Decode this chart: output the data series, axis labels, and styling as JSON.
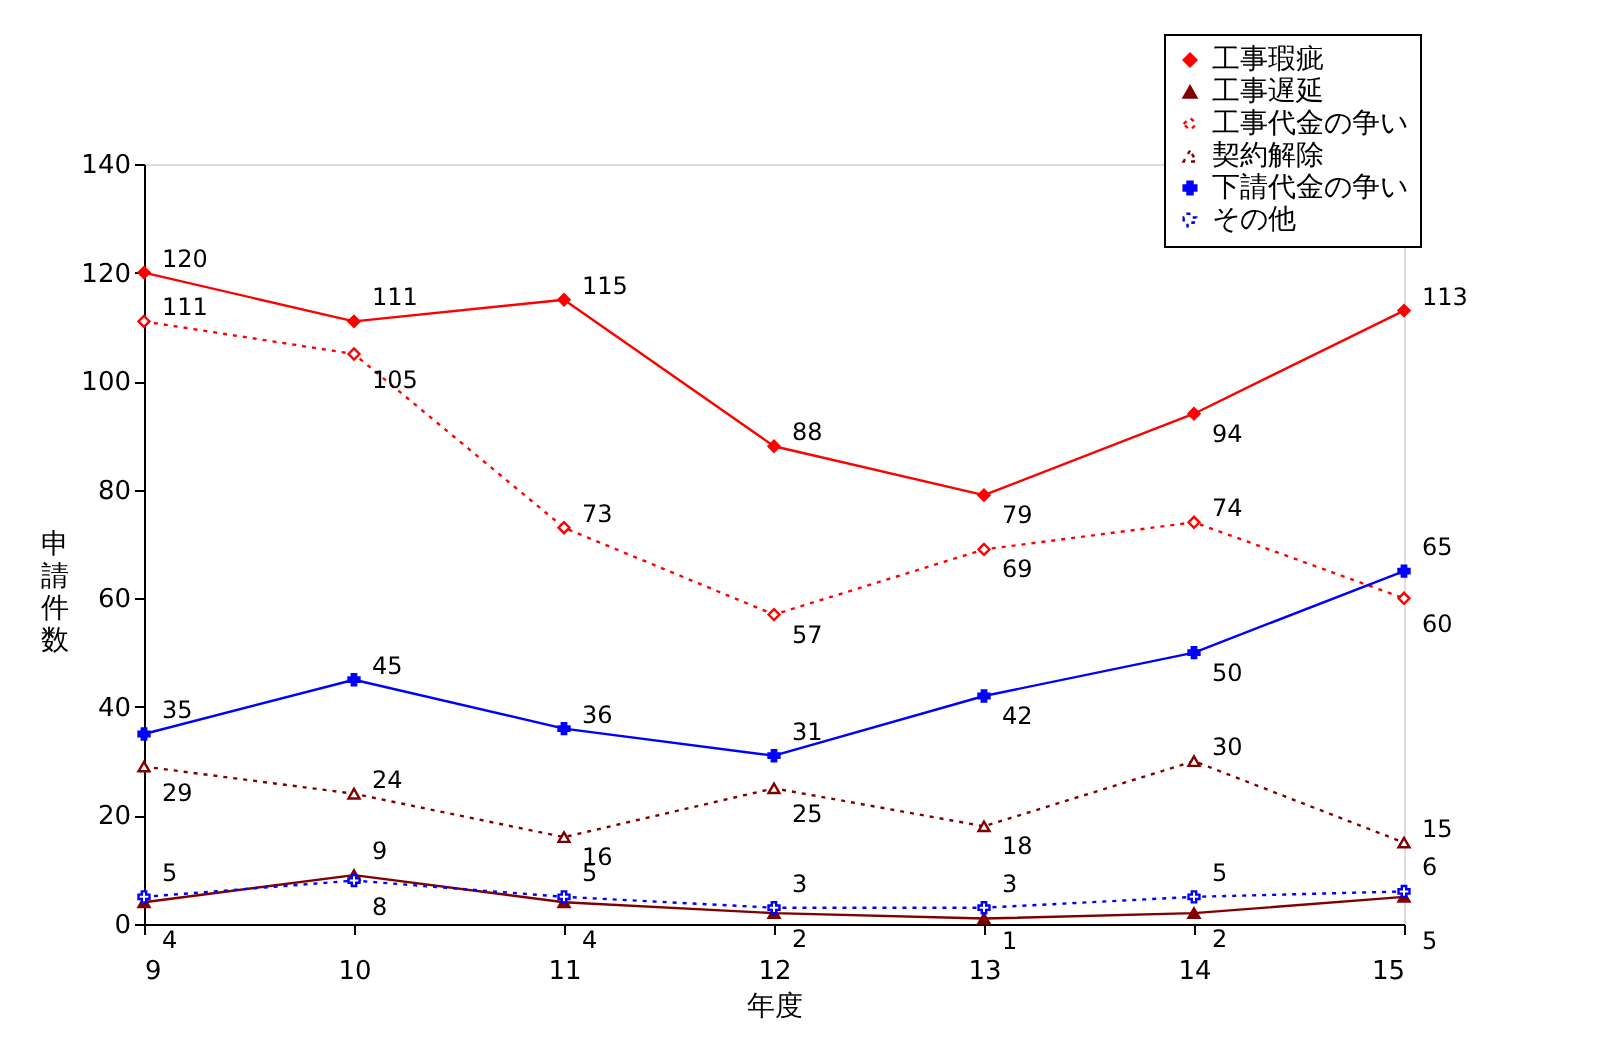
{
  "chart_data": {
    "type": "line",
    "xlabel": "年度",
    "ylabel": "申請件数",
    "x": [
      9,
      10,
      11,
      12,
      13,
      14,
      15
    ],
    "xlim": [
      9,
      15
    ],
    "xticks": [
      9,
      10,
      11,
      12,
      13,
      14,
      15
    ],
    "ylim": [
      0,
      140
    ],
    "yticks": [
      0,
      20,
      40,
      60,
      80,
      100,
      120,
      140
    ],
    "grid": false,
    "legend": "top right",
    "data_labels": true,
    "series": [
      {
        "name": "工事瑕疵",
        "color": "#ff0000",
        "marker": "diamond",
        "line_style": "solid",
        "values": [
          120,
          111,
          115,
          88,
          79,
          94,
          113
        ]
      },
      {
        "name": "工事遅延",
        "color": "#800000",
        "marker": "triangle",
        "line_style": "solid",
        "values": [
          4,
          9,
          4,
          2,
          1,
          2,
          5
        ]
      },
      {
        "name": "工事代金の争い",
        "color": "#ff0000",
        "marker": "diamond",
        "line_style": "dotted",
        "values": [
          111,
          105,
          73,
          57,
          69,
          74,
          60
        ]
      },
      {
        "name": "契約解除",
        "color": "#800000",
        "marker": "triangle",
        "line_style": "dotted",
        "values": [
          29,
          24,
          16,
          25,
          18,
          30,
          15
        ]
      },
      {
        "name": "下請代金の争い",
        "color": "#0000ff",
        "marker": "cross",
        "line_style": "solid",
        "values": [
          35,
          45,
          36,
          31,
          42,
          50,
          65
        ]
      },
      {
        "name": "その他",
        "color": "#0000ff",
        "marker": "cross",
        "line_style": "dotted",
        "values": [
          5,
          8,
          5,
          3,
          3,
          5,
          6
        ]
      }
    ]
  }
}
